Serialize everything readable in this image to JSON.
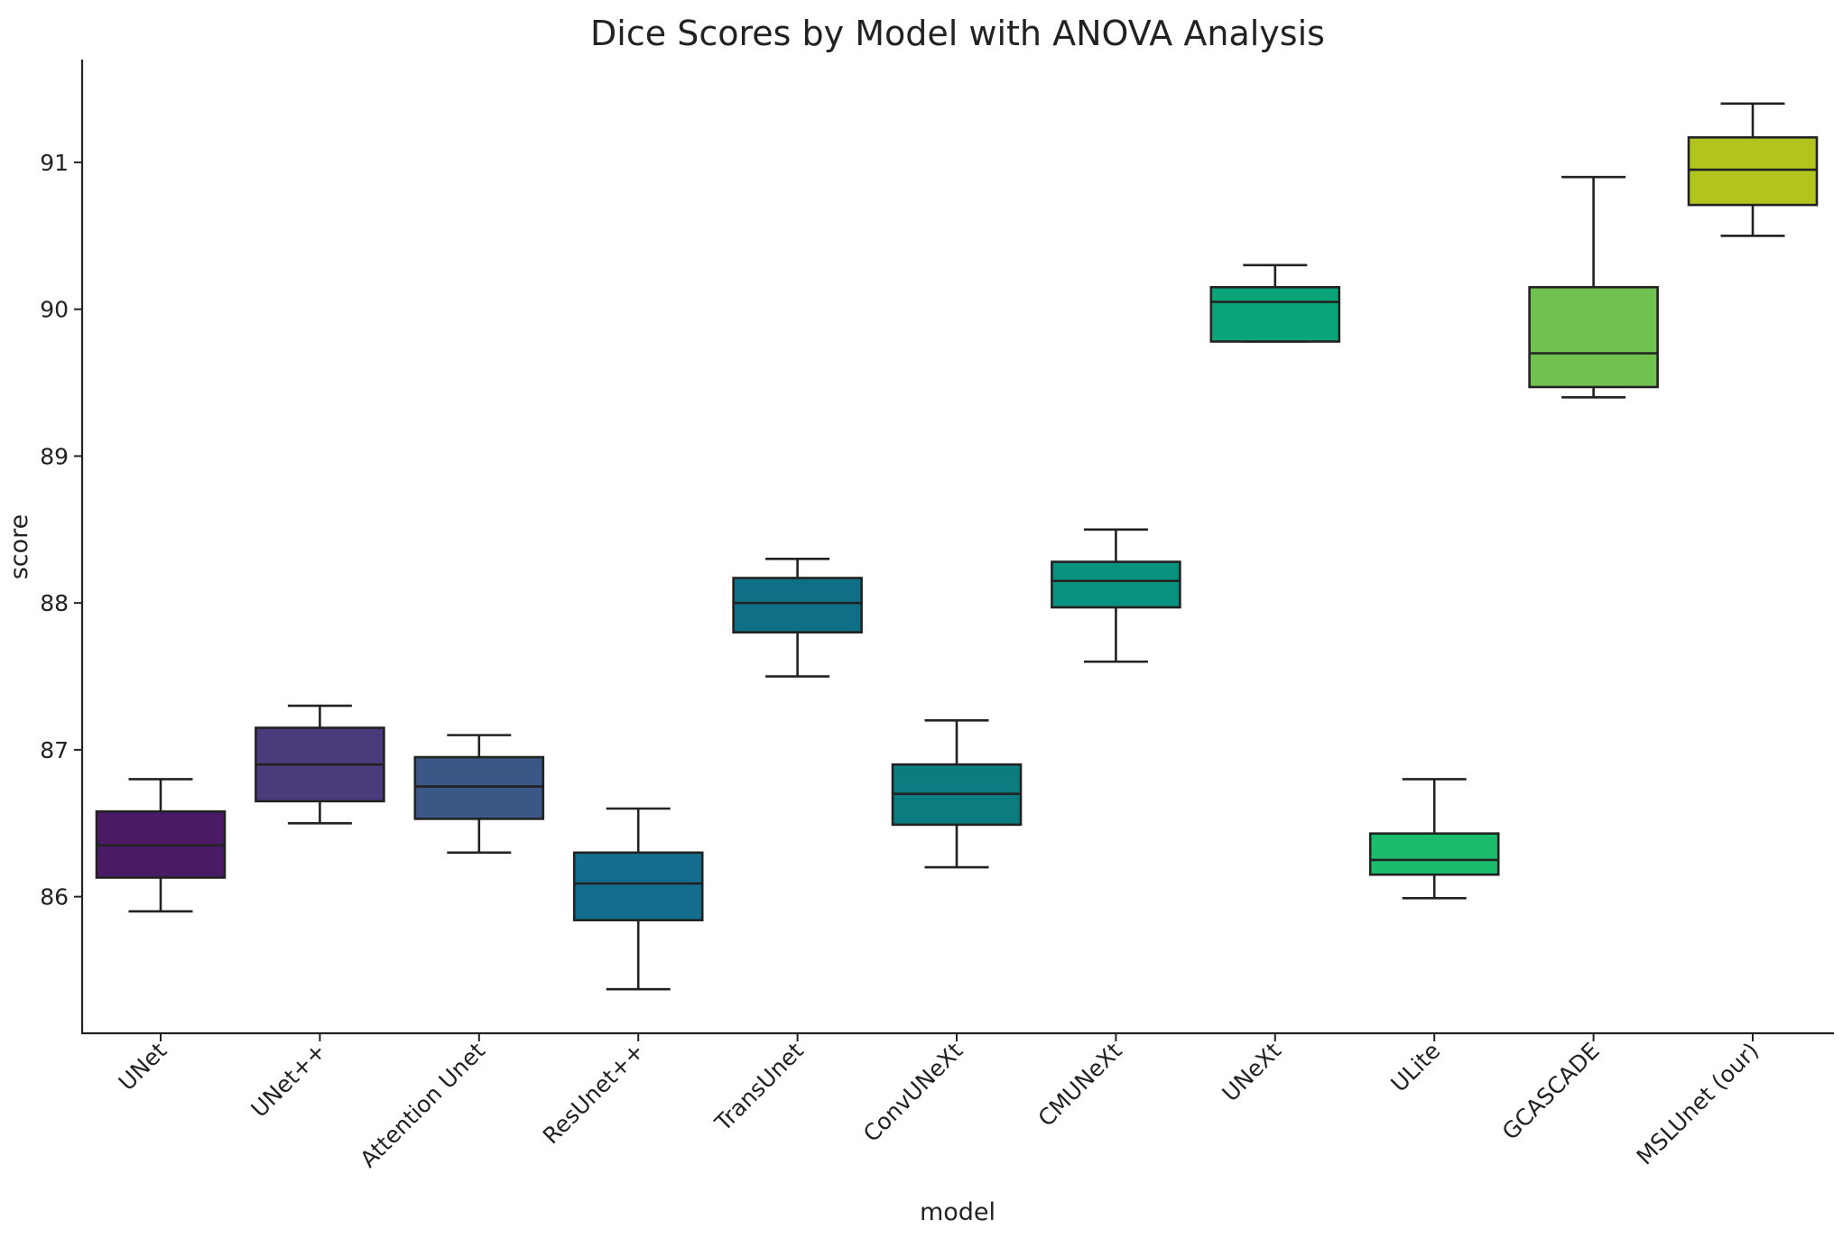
{
  "chart_data": {
    "type": "box",
    "title": "Dice Scores by Model with ANOVA Analysis",
    "xlabel": "model",
    "ylabel": "score",
    "ylim": [
      85.07,
      91.7
    ],
    "yticks": [
      86,
      87,
      88,
      89,
      90,
      91
    ],
    "grid": false,
    "legend": "none",
    "categories": [
      "UNet",
      "UNet++",
      "Attention Unet",
      "ResUnet++",
      "TransUnet",
      "ConvUNeXt",
      "CMUNeXt",
      "UNeXt",
      "ULite",
      "GCASCADE",
      "MSLUnet (our)"
    ],
    "series": [
      {
        "category": "UNet",
        "whislo": 85.9,
        "q1": 86.13,
        "med": 86.35,
        "q3": 86.58,
        "whishi": 86.8,
        "color": "#4a1a66"
      },
      {
        "category": "UNet++",
        "whislo": 86.5,
        "q1": 86.65,
        "med": 86.9,
        "q3": 87.15,
        "whishi": 87.3,
        "color": "#4b3b7d"
      },
      {
        "category": "Attention Unet",
        "whislo": 86.3,
        "q1": 86.53,
        "med": 86.75,
        "q3": 86.95,
        "whishi": 87.1,
        "color": "#3a5786"
      },
      {
        "category": "ResUnet++",
        "whislo": 85.37,
        "q1": 85.84,
        "med": 86.09,
        "q3": 86.3,
        "whishi": 86.6,
        "color": "#126d8e"
      },
      {
        "category": "TransUnet",
        "whislo": 87.5,
        "q1": 87.8,
        "med": 88.0,
        "q3": 88.17,
        "whishi": 88.3,
        "color": "#0f6f87"
      },
      {
        "category": "ConvUNeXt",
        "whislo": 86.2,
        "q1": 86.49,
        "med": 86.7,
        "q3": 86.9,
        "whishi": 87.2,
        "color": "#0b7d80"
      },
      {
        "category": "CMUNeXt",
        "whislo": 87.6,
        "q1": 87.97,
        "med": 88.15,
        "q3": 88.28,
        "whishi": 88.5,
        "color": "#08917e"
      },
      {
        "category": "UNeXt",
        "whislo": 89.78,
        "q1": 89.78,
        "med": 90.05,
        "q3": 90.15,
        "whishi": 90.3,
        "color": "#0aa67a"
      },
      {
        "category": "ULite",
        "whislo": 85.99,
        "q1": 86.15,
        "med": 86.25,
        "q3": 86.43,
        "whishi": 86.8,
        "color": "#1bbd6a"
      },
      {
        "category": "GCASCADE",
        "whislo": 89.4,
        "q1": 89.47,
        "med": 89.7,
        "q3": 90.15,
        "whishi": 90.9,
        "color": "#6fc24f"
      },
      {
        "category": "MSLUnet (our)",
        "whislo": 90.5,
        "q1": 90.71,
        "med": 90.95,
        "q3": 91.17,
        "whishi": 91.4,
        "color": "#b1c51e"
      }
    ]
  }
}
